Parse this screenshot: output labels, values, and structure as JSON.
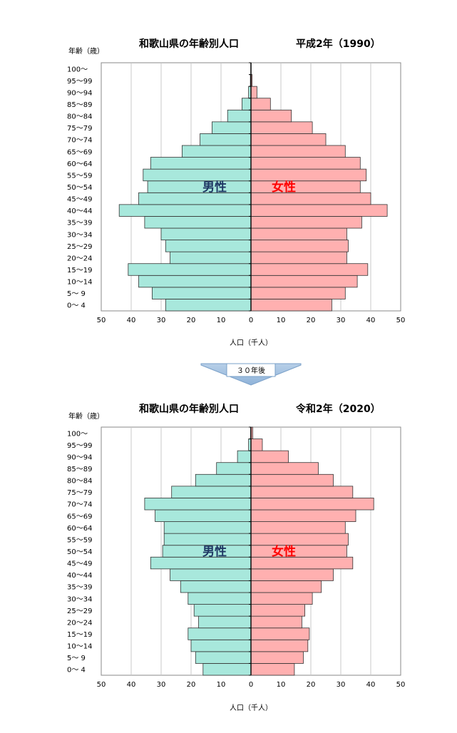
{
  "chart_data": [
    {
      "type": "bar",
      "orientation": "horizontal",
      "layout": "population-pyramid",
      "title": "和歌山県の年齢別人口",
      "title_era": "平成2年（1990）",
      "ylabel": "年齢（歳）",
      "xlabel": "人口（千人）",
      "xlim": [
        0,
        50
      ],
      "x_ticks": [
        "50",
        "40",
        "30",
        "20",
        "10",
        "0",
        "10",
        "20",
        "30",
        "40",
        "50"
      ],
      "grid": true,
      "categories": [
        "0～ 4",
        "5～ 9",
        "10～14",
        "15～19",
        "20～24",
        "25～29",
        "30～34",
        "35～39",
        "40～44",
        "45～49",
        "50～54",
        "55～59",
        "60～64",
        "65～69",
        "70～74",
        "75～79",
        "80～84",
        "85～89",
        "90～94",
        "95～99",
        "100～"
      ],
      "series": [
        {
          "name": "男性",
          "color": "#a8e8dc",
          "values": [
            28.5,
            33,
            37.5,
            41,
            27,
            28.5,
            30,
            35.5,
            44,
            37.5,
            34.5,
            36,
            33.5,
            23,
            17,
            13,
            7.8,
            3,
            0.8,
            0.2,
            0.05
          ]
        },
        {
          "name": "女性",
          "color": "#ffb0b0",
          "values": [
            27,
            31.5,
            35.5,
            39,
            32,
            32.5,
            32,
            37,
            45.5,
            40,
            36.5,
            38.5,
            36.5,
            31.5,
            25,
            20.5,
            13.5,
            6.5,
            2,
            0.4,
            0.05
          ]
        }
      ]
    },
    {
      "type": "bar",
      "orientation": "horizontal",
      "layout": "population-pyramid",
      "title": "和歌山県の年齢別人口",
      "title_era": "令和2年（2020）",
      "ylabel": "年齢（歳）",
      "xlabel": "人口（千人）",
      "xlim": [
        0,
        50
      ],
      "x_ticks": [
        "50",
        "40",
        "30",
        "20",
        "10",
        "0",
        "10",
        "20",
        "30",
        "40",
        "50"
      ],
      "grid": true,
      "categories": [
        "0～ 4",
        "5～ 9",
        "10～14",
        "15～19",
        "20～24",
        "25～29",
        "30～34",
        "35～39",
        "40～44",
        "45～49",
        "50～54",
        "55～59",
        "60～64",
        "65～69",
        "70～74",
        "75～79",
        "80～84",
        "85～89",
        "90～94",
        "95～99",
        "100～"
      ],
      "series": [
        {
          "name": "男性",
          "color": "#a8e8dc",
          "values": [
            16,
            18.5,
            20,
            21,
            17.5,
            19,
            21,
            23.5,
            27,
            33.5,
            29.5,
            29,
            29,
            32,
            35.5,
            26.5,
            18.5,
            11.5,
            4.5,
            0.8,
            0.1
          ]
        },
        {
          "name": "女性",
          "color": "#ffb0b0",
          "values": [
            14.5,
            17.5,
            19,
            19.5,
            17,
            18,
            20.5,
            23.5,
            27.5,
            34,
            32,
            32.5,
            31.5,
            35,
            41,
            34,
            27.5,
            22.5,
            12.5,
            3.8,
            0.6
          ]
        }
      ]
    }
  ],
  "connector": {
    "label": "３０年後",
    "color": "#8fb3d9"
  }
}
